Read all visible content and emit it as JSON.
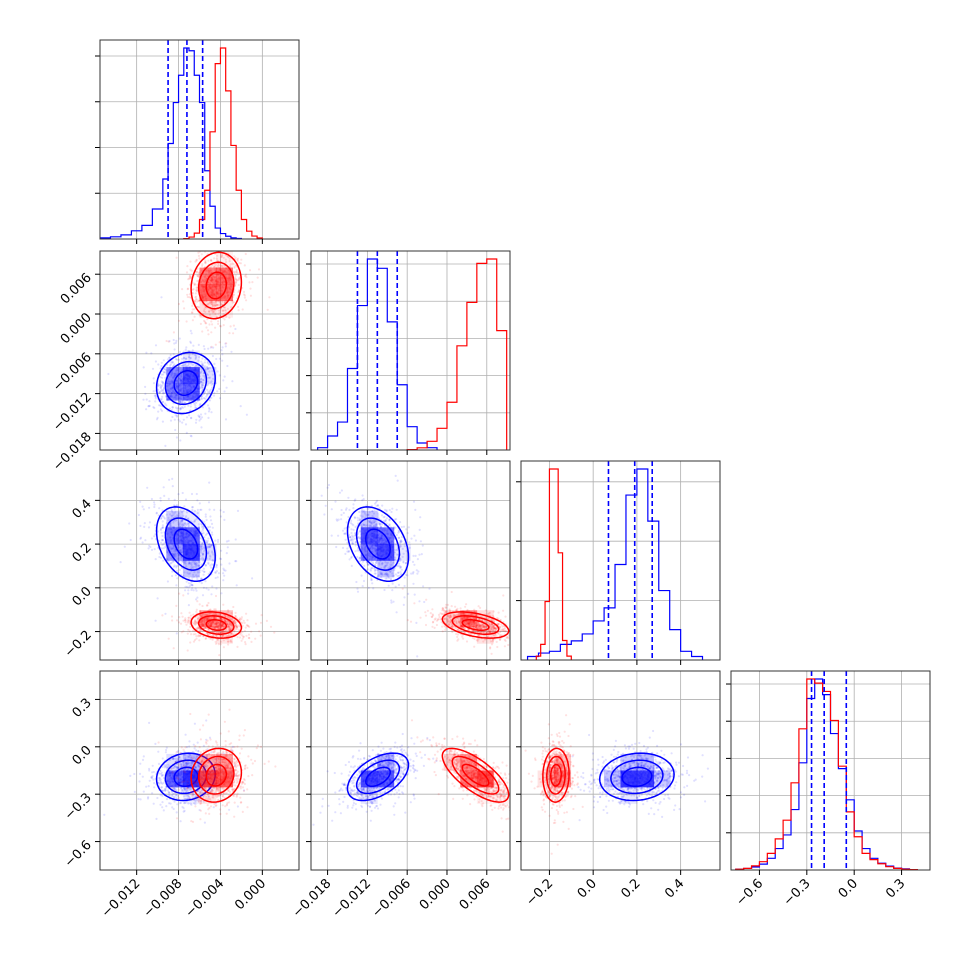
{
  "chart_data": {
    "type": "corner",
    "colors": {
      "series_a": "#0000ff",
      "series_b": "#ff0000",
      "grid": "#b0b0b0",
      "frame": "#333333"
    },
    "grid": true,
    "parameters": [
      {
        "range": [
          -0.0155,
          0.0035
        ],
        "ticks": [
          {
            "v": -0.012,
            "label": "−0.012"
          },
          {
            "v": -0.008,
            "label": "−0.008"
          },
          {
            "v": -0.004,
            "label": "−0.004"
          },
          {
            "v": 0.0,
            "label": "0.000"
          }
        ]
      },
      {
        "range": [
          -0.0205,
          0.0095
        ],
        "ticks": [
          {
            "v": -0.018,
            "label": "−0.018"
          },
          {
            "v": -0.012,
            "label": "−0.012"
          },
          {
            "v": -0.006,
            "label": "−0.006"
          },
          {
            "v": 0.0,
            "label": "0.000"
          },
          {
            "v": 0.006,
            "label": "0.006"
          }
        ]
      },
      {
        "range": [
          -0.33,
          0.58
        ],
        "ticks": [
          {
            "v": -0.2,
            "label": "−0.2"
          },
          {
            "v": 0.0,
            "label": "0.0"
          },
          {
            "v": 0.2,
            "label": "0.2"
          },
          {
            "v": 0.4,
            "label": "0.4"
          }
        ]
      },
      {
        "range": [
          -0.78,
          0.48
        ],
        "ticks": [
          {
            "v": -0.6,
            "label": "−0.6"
          },
          {
            "v": -0.3,
            "label": "−0.3"
          },
          {
            "v": 0.0,
            "label": "0.0"
          },
          {
            "v": 0.3,
            "label": "0.3"
          }
        ]
      }
    ],
    "hist_ticks": [
      4,
      5,
      3,
      5
    ],
    "quantiles_series_a": [
      [
        -0.009,
        -0.0072,
        -0.0057
      ],
      [
        -0.0135,
        -0.0105,
        -0.0075
      ],
      [
        0.07,
        0.19,
        0.27
      ],
      [
        -0.27,
        -0.19,
        -0.05
      ]
    ],
    "series": [
      {
        "name": "",
        "color": "#0000ff",
        "means": [
          -0.0073,
          -0.0104,
          0.2,
          -0.19
        ],
        "sds": [
          0.0014,
          0.0023,
          0.085,
          0.075
        ],
        "corr": [
          [
            0,
            1,
            0.15
          ],
          [
            0,
            2,
            -0.35
          ],
          [
            1,
            2,
            -0.35
          ],
          [
            0,
            3,
            0.1
          ],
          [
            1,
            3,
            0.5
          ],
          [
            2,
            3,
            0.1
          ]
        ],
        "hist": [
          [
            [
              -0.0155,
              0.004
            ],
            [
              -0.0145,
              0.008
            ],
            [
              -0.0135,
              0.015
            ],
            [
              -0.0125,
              0.03
            ],
            [
              -0.0115,
              0.05
            ],
            [
              -0.0105,
              0.11
            ],
            [
              -0.0095,
              0.22
            ],
            [
              -0.009,
              0.35
            ],
            [
              -0.0085,
              0.5
            ],
            [
              -0.008,
              0.6
            ],
            [
              -0.0075,
              0.7
            ],
            [
              -0.007,
              0.69
            ],
            [
              -0.0065,
              0.6
            ],
            [
              -0.006,
              0.5
            ],
            [
              -0.0055,
              0.25
            ],
            [
              -0.005,
              0.12
            ],
            [
              -0.0045,
              0.04
            ],
            [
              -0.004,
              0.02
            ],
            [
              -0.0035,
              0.01
            ],
            [
              -0.003,
              0.004
            ],
            [
              -0.0025,
              0.002
            ],
            [
              -0.002,
              0.0
            ]
          ],
          [
            [
              -0.0195,
              0.01
            ],
            [
              -0.018,
              0.06
            ],
            [
              -0.0165,
              0.12
            ],
            [
              -0.015,
              0.35
            ],
            [
              -0.0135,
              0.62
            ],
            [
              -0.012,
              0.82
            ],
            [
              -0.0105,
              0.78
            ],
            [
              -0.009,
              0.55
            ],
            [
              -0.0075,
              0.28
            ],
            [
              -0.006,
              0.1
            ],
            [
              -0.0045,
              0.03
            ],
            [
              -0.003,
              0.01
            ],
            [
              -0.0015,
              0.0
            ]
          ],
          [
            [
              -0.3,
              0.004
            ],
            [
              -0.25,
              0.008
            ],
            [
              -0.2,
              0.01
            ],
            [
              -0.15,
              0.018
            ],
            [
              -0.1,
              0.022
            ],
            [
              -0.05,
              0.03
            ],
            [
              0.0,
              0.045
            ],
            [
              0.05,
              0.06
            ],
            [
              0.1,
              0.11
            ],
            [
              0.15,
              0.19
            ],
            [
              0.2,
              0.22
            ],
            [
              0.25,
              0.16
            ],
            [
              0.3,
              0.08
            ],
            [
              0.35,
              0.035
            ],
            [
              0.4,
              0.01
            ],
            [
              0.45,
              0.004
            ],
            [
              0.5,
              0.0
            ]
          ],
          [
            [
              -0.75,
              0.004
            ],
            [
              -0.7,
              0.008
            ],
            [
              -0.65,
              0.015
            ],
            [
              -0.6,
              0.03
            ],
            [
              -0.55,
              0.06
            ],
            [
              -0.5,
              0.11
            ],
            [
              -0.45,
              0.18
            ],
            [
              -0.4,
              0.31
            ],
            [
              -0.35,
              0.55
            ],
            [
              -0.3,
              0.88
            ],
            [
              -0.25,
              0.98
            ],
            [
              -0.2,
              0.9
            ],
            [
              -0.15,
              0.7
            ],
            [
              -0.1,
              0.52
            ],
            [
              -0.05,
              0.36
            ],
            [
              0.0,
              0.2
            ],
            [
              0.05,
              0.11
            ],
            [
              0.1,
              0.06
            ],
            [
              0.15,
              0.035
            ],
            [
              0.2,
              0.02
            ],
            [
              0.25,
              0.01
            ],
            [
              0.3,
              0.006
            ],
            [
              0.35,
              0.002
            ],
            [
              0.4,
              0.0
            ]
          ]
        ]
      },
      {
        "name": "",
        "color": "#ff0000",
        "means": [
          -0.0044,
          0.0043,
          -0.17,
          -0.18
        ],
        "sds": [
          0.0012,
          0.0025,
          0.03,
          0.085
        ],
        "corr": [
          [
            0,
            1,
            0.1
          ],
          [
            0,
            2,
            -0.2
          ],
          [
            1,
            2,
            -0.45
          ],
          [
            0,
            3,
            0.1
          ],
          [
            1,
            3,
            -0.72
          ],
          [
            2,
            3,
            0.05
          ]
        ],
        "hist": [
          [
            [
              -0.0075,
              0.002
            ],
            [
              -0.007,
              0.01
            ],
            [
              -0.0065,
              0.03
            ],
            [
              -0.006,
              0.1
            ],
            [
              -0.0055,
              0.25
            ],
            [
              -0.005,
              0.55
            ],
            [
              -0.0045,
              0.9
            ],
            [
              -0.004,
              0.98
            ],
            [
              -0.0035,
              0.76
            ],
            [
              -0.003,
              0.48
            ],
            [
              -0.0025,
              0.25
            ],
            [
              -0.002,
              0.1
            ],
            [
              -0.0015,
              0.04
            ],
            [
              -0.001,
              0.015
            ],
            [
              -0.0005,
              0.005
            ],
            [
              0.0,
              0.0
            ]
          ],
          [
            [
              -0.006,
              0.002
            ],
            [
              -0.0045,
              0.01
            ],
            [
              -0.003,
              0.04
            ],
            [
              -0.0015,
              0.1
            ],
            [
              0.0,
              0.22
            ],
            [
              0.0015,
              0.48
            ],
            [
              0.003,
              0.68
            ],
            [
              0.0045,
              0.86
            ],
            [
              0.006,
              0.88
            ],
            [
              0.0075,
              0.55
            ],
            [
              0.009,
              0.06
            ]
          ],
          [
            [
              -0.26,
              0.02
            ],
            [
              -0.24,
              0.08
            ],
            [
              -0.22,
              0.3
            ],
            [
              -0.2,
              0.98
            ],
            [
              -0.18,
              0.98
            ],
            [
              -0.16,
              0.55
            ],
            [
              -0.14,
              0.1
            ],
            [
              -0.12,
              0.02
            ],
            [
              -0.1,
              0.0
            ]
          ],
          [
            [
              -0.75,
              0.004
            ],
            [
              -0.7,
              0.008
            ],
            [
              -0.65,
              0.02
            ],
            [
              -0.6,
              0.04
            ],
            [
              -0.55,
              0.08
            ],
            [
              -0.5,
              0.15
            ],
            [
              -0.45,
              0.24
            ],
            [
              -0.4,
              0.42
            ],
            [
              -0.35,
              0.68
            ],
            [
              -0.3,
              0.92
            ],
            [
              -0.25,
              0.9
            ],
            [
              -0.2,
              0.86
            ],
            [
              -0.15,
              0.72
            ],
            [
              -0.1,
              0.5
            ],
            [
              -0.05,
              0.28
            ],
            [
              0.0,
              0.16
            ],
            [
              0.05,
              0.08
            ],
            [
              0.1,
              0.05
            ],
            [
              0.15,
              0.03
            ],
            [
              0.2,
              0.016
            ],
            [
              0.25,
              0.008
            ],
            [
              0.3,
              0.004
            ],
            [
              0.35,
              0.002
            ],
            [
              0.4,
              0.0
            ]
          ]
        ]
      }
    ]
  }
}
